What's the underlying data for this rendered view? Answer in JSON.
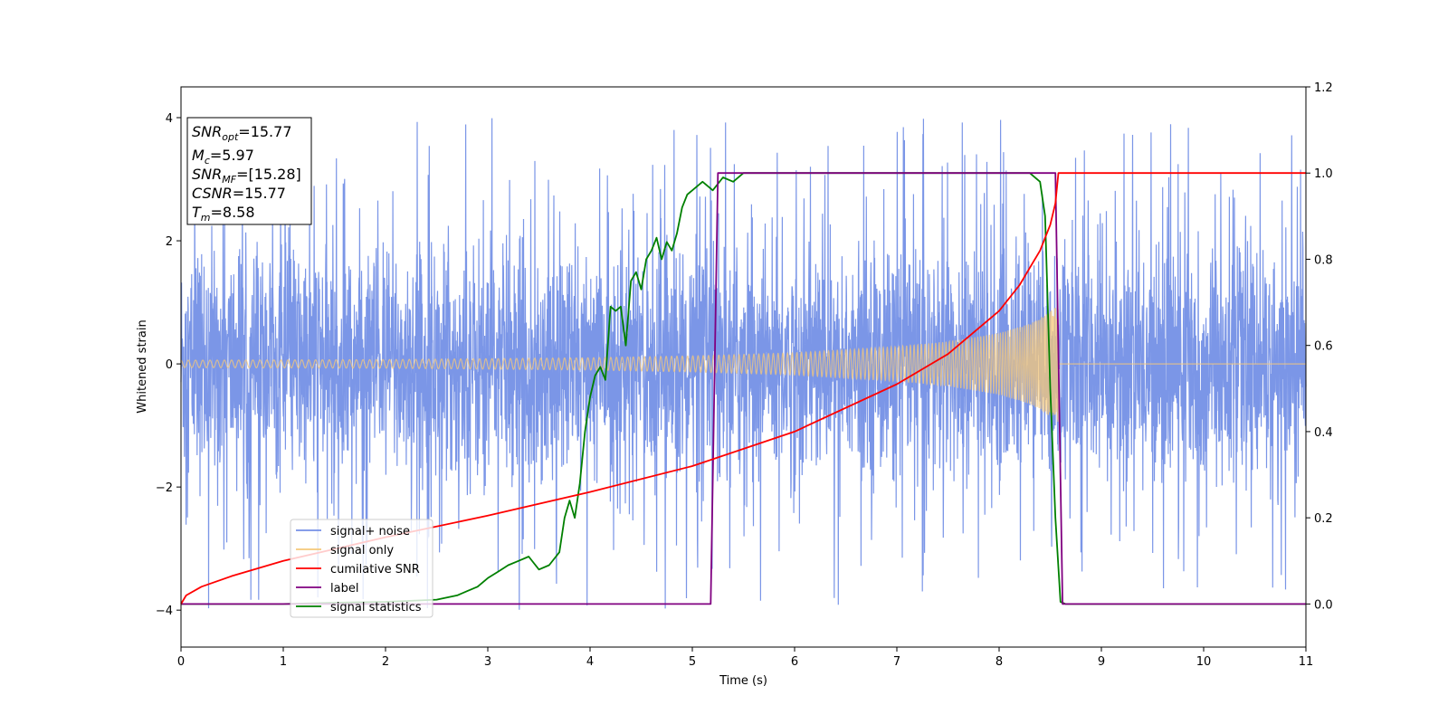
{
  "chart_data": {
    "type": "line",
    "xlabel": "Time (s)",
    "ylabel": "Whitened strain",
    "xlim": [
      0,
      11
    ],
    "ylim_left": [
      -4.6,
      4.5
    ],
    "ylim_right": [
      -0.1,
      1.2
    ],
    "x_ticks": [
      "0",
      "1",
      "2",
      "3",
      "4",
      "5",
      "6",
      "7",
      "8",
      "9",
      "10",
      "11"
    ],
    "y_ticks_left": [
      "4",
      "2",
      "0",
      "−2",
      "−4"
    ],
    "y_ticks_right": [
      "1.2",
      "1.0",
      "0.8",
      "0.6",
      "0.4",
      "0.2",
      "0.0"
    ],
    "grid": false,
    "legend_position": "lower-left",
    "info_box": {
      "lines": [
        {
          "main": "SNR",
          "sub": "opt",
          "value": "=15.77"
        },
        {
          "main": "M",
          "sub": "c",
          "value": "=5.97"
        },
        {
          "main": "SNR",
          "sub": "MF",
          "value": "=[15.28]"
        },
        {
          "main": "CSNR",
          "sub": "",
          "value": "=15.77"
        },
        {
          "main": "T",
          "sub": "m",
          "value": "=8.58"
        }
      ]
    },
    "series": [
      {
        "name": "signal+ noise",
        "axis": "left",
        "color": "#7490e6",
        "style": "dense-noise",
        "noise_typical_amplitude": 1.0,
        "noise_peak_max": 4.1,
        "noise_peak_min": -4.1,
        "x_range": [
          0,
          11
        ]
      },
      {
        "name": "signal only",
        "axis": "left",
        "color": "#f5c87a",
        "style": "chirp",
        "t_start": 0,
        "t_merger": 8.58,
        "amplitude_points": [
          [
            0,
            0.06
          ],
          [
            2,
            0.07
          ],
          [
            4,
            0.1
          ],
          [
            5,
            0.13
          ],
          [
            6,
            0.18
          ],
          [
            7,
            0.28
          ],
          [
            7.5,
            0.36
          ],
          [
            8,
            0.5
          ],
          [
            8.3,
            0.65
          ],
          [
            8.5,
            0.85
          ],
          [
            8.58,
            0.95
          ]
        ],
        "post_merger_value": 0
      },
      {
        "name": "cumilative SNR",
        "axis": "right",
        "color": "#ff0000",
        "x": [
          0,
          0.05,
          0.2,
          0.5,
          1,
          2,
          3,
          4,
          5,
          6,
          7,
          7.5,
          8,
          8.2,
          8.4,
          8.5,
          8.55,
          8.58,
          9,
          10,
          11
        ],
        "y": [
          0,
          0.02,
          0.04,
          0.065,
          0.1,
          0.155,
          0.205,
          0.26,
          0.32,
          0.4,
          0.51,
          0.58,
          0.68,
          0.74,
          0.82,
          0.88,
          0.93,
          1.0,
          1.0,
          1.0,
          1.0
        ]
      },
      {
        "name": "label",
        "axis": "right",
        "color": "#800080",
        "x": [
          0,
          5.18,
          5.25,
          8.55,
          8.62,
          11
        ],
        "y": [
          0,
          0,
          1,
          1,
          0,
          0
        ]
      },
      {
        "name": "signal statistics",
        "axis": "right",
        "color": "#008000",
        "x": [
          0,
          0.5,
          1,
          1.5,
          2,
          2.5,
          2.7,
          2.8,
          2.9,
          3.0,
          3.1,
          3.2,
          3.3,
          3.4,
          3.5,
          3.6,
          3.7,
          3.75,
          3.8,
          3.85,
          3.9,
          3.95,
          4.0,
          4.05,
          4.1,
          4.15,
          4.2,
          4.25,
          4.3,
          4.35,
          4.4,
          4.45,
          4.5,
          4.55,
          4.6,
          4.65,
          4.7,
          4.75,
          4.8,
          4.85,
          4.9,
          4.95,
          5.0,
          5.1,
          5.2,
          5.3,
          5.4,
          5.5,
          5.6,
          5.8,
          6.0,
          6.5,
          7.0,
          7.5,
          8.0,
          8.3,
          8.4,
          8.45,
          8.5,
          8.55,
          8.6,
          8.65,
          9,
          10,
          11
        ],
        "y": [
          0,
          0,
          0,
          0.003,
          0.005,
          0.01,
          0.02,
          0.03,
          0.04,
          0.06,
          0.075,
          0.09,
          0.1,
          0.11,
          0.08,
          0.09,
          0.12,
          0.2,
          0.24,
          0.2,
          0.28,
          0.4,
          0.48,
          0.53,
          0.55,
          0.52,
          0.69,
          0.68,
          0.69,
          0.6,
          0.75,
          0.77,
          0.73,
          0.8,
          0.82,
          0.85,
          0.8,
          0.84,
          0.82,
          0.86,
          0.92,
          0.95,
          0.96,
          0.98,
          0.96,
          0.99,
          0.98,
          1.0,
          1.0,
          1.0,
          1.0,
          1.0,
          1.0,
          1.0,
          1.0,
          1.0,
          0.98,
          0.9,
          0.5,
          0.2,
          0.005,
          0.0,
          0.0,
          0.0,
          0.0
        ]
      }
    ]
  }
}
